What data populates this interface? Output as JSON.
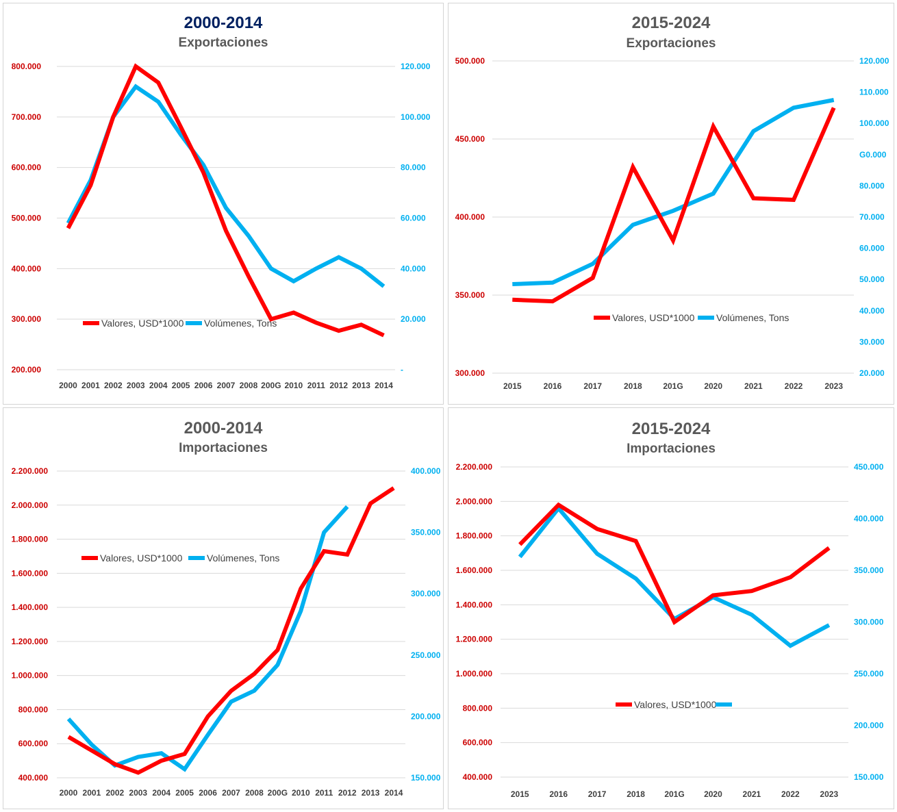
{
  "colors": {
    "valores": "#ff0000",
    "volumenes": "#00b0f0",
    "grid": "#d9d9d9",
    "axis_text": "#404040",
    "title": "#595959",
    "title_navy": "#002060",
    "left_tick": "#cc0000",
    "right_tick": "#00b0f0"
  },
  "chart_data": [
    {
      "type": "line",
      "title": "2000-2014",
      "subtitle": "Exportaciones",
      "title_color": "#002060",
      "categories": [
        "2000",
        "2001",
        "2002",
        "2003",
        "2004",
        "2005",
        "2006",
        "2007",
        "2008",
        "200G",
        "2010",
        "2011",
        "2012",
        "2013",
        "2014"
      ],
      "y_left_ticks": [
        "800.000",
        "700.000",
        "600.000",
        "500.000",
        "400.000",
        "300.000",
        "200.000"
      ],
      "y_right_ticks": [
        "120.000",
        "100.000",
        "80.000",
        "60.000",
        "40.000",
        "20.000",
        "-"
      ],
      "ylim_left": [
        200000,
        800000
      ],
      "ylim_right": [
        0,
        120000
      ],
      "legend_position": "center",
      "series": [
        {
          "name": "Valores, USD*1000",
          "axis": "left",
          "color": "#ff0000",
          "values": [
            480000,
            565000,
            700000,
            800000,
            768000,
            680000,
            590000,
            475000,
            385000,
            300000,
            313000,
            293000,
            277000,
            289000,
            268000
          ]
        },
        {
          "name": "Volúmenes, Tons",
          "axis": "right",
          "color": "#00b0f0",
          "values": [
            58000,
            75000,
            100000,
            112000,
            106000,
            93000,
            81000,
            64000,
            53000,
            40000,
            35000,
            40000,
            44500,
            40000,
            33000
          ]
        }
      ]
    },
    {
      "type": "line",
      "title": "2015-2024",
      "subtitle": "Exportaciones",
      "title_color": "#595959",
      "categories": [
        "2015",
        "2016",
        "2017",
        "2018",
        "201G",
        "2020",
        "2021",
        "2022",
        "2023"
      ],
      "y_left_ticks": [
        "500.000",
        "450.000",
        "400.000",
        "350.000",
        "300.000"
      ],
      "y_right_ticks": [
        "120.000",
        "110.000",
        "100.000",
        "G0.000",
        "80.000",
        "70.000",
        "60.000",
        "50.000",
        "40.000",
        "30.000",
        "20.000"
      ],
      "ylim_left": [
        300000,
        500000
      ],
      "ylim_right": [
        20000,
        120000
      ],
      "legend_position": "center",
      "series": [
        {
          "name": "Valores, USD*1000",
          "axis": "left",
          "color": "#ff0000",
          "values": [
            347000,
            346000,
            361000,
            432000,
            385000,
            458000,
            412000,
            411000,
            470000
          ]
        },
        {
          "name": "Volúmenes, Tons",
          "axis": "right",
          "color": "#00b0f0",
          "values": [
            48500,
            49000,
            55000,
            67500,
            72000,
            77500,
            97500,
            105000,
            107500
          ]
        }
      ]
    },
    {
      "type": "line",
      "title": "2000-2014",
      "subtitle": "Importaciones",
      "title_color": "#595959",
      "categories": [
        "2000",
        "2001",
        "2002",
        "2003",
        "2004",
        "2005",
        "2006",
        "2007",
        "2008",
        "200G",
        "2010",
        "2011",
        "2012",
        "2013",
        "2014"
      ],
      "y_left_ticks": [
        "2.200.000",
        "2.000.000",
        "1.800.000",
        "1.600.000",
        "1.400.000",
        "1.200.000",
        "1.000.000",
        "800.000",
        "600.000",
        "400.000"
      ],
      "y_right_ticks": [
        "400.000",
        "350.000",
        "300.000",
        "250.000",
        "200.000",
        "150.000"
      ],
      "ylim_left": [
        400000,
        2200000
      ],
      "ylim_right": [
        150000,
        400000
      ],
      "legend_position": "top-left",
      "series": [
        {
          "name": "Valores, USD*1000",
          "axis": "left",
          "color": "#ff0000",
          "values": [
            640000,
            560000,
            480000,
            430000,
            500000,
            540000,
            760000,
            910000,
            1010000,
            1150000,
            1510000,
            1730000,
            1710000,
            2010000,
            2100000
          ]
        },
        {
          "name": "Volúmenes, Tons",
          "axis": "right",
          "color": "#00b0f0",
          "values": [
            198000,
            177000,
            160000,
            167000,
            170000,
            157000,
            185000,
            212000,
            221000,
            242000,
            286000,
            350000,
            371000,
            null,
            null
          ]
        }
      ]
    },
    {
      "type": "line",
      "title": "2015-2024",
      "subtitle": "Importaciones",
      "title_color": "#595959",
      "categories": [
        "2015",
        "2016",
        "2017",
        "2018",
        "201G",
        "2020",
        "2021",
        "2022",
        "2023"
      ],
      "y_left_ticks": [
        "2.200.000",
        "2.000.000",
        "1.800.000",
        "1.600.000",
        "1.400.000",
        "1.200.000",
        "1.000.000",
        "800.000",
        "600.000",
        "400.000"
      ],
      "y_right_ticks": [
        "450.000",
        "400.000",
        "350.000",
        "300.000",
        "250.000",
        "200.000",
        "150.000"
      ],
      "ylim_left": [
        400000,
        2200000
      ],
      "ylim_right": [
        150000,
        450000
      ],
      "legend_position": "bottom-center",
      "series": [
        {
          "name": "Valores, USD*1000",
          "axis": "left",
          "color": "#ff0000",
          "values": [
            1750000,
            1980000,
            1840000,
            1770000,
            1300000,
            1455000,
            1480000,
            1560000,
            1730000
          ]
        },
        {
          "name": "",
          "axis": "right",
          "color": "#00b0f0",
          "values": [
            363000,
            410000,
            366000,
            342000,
            303000,
            324000,
            307000,
            277000,
            297000
          ]
        }
      ]
    }
  ]
}
